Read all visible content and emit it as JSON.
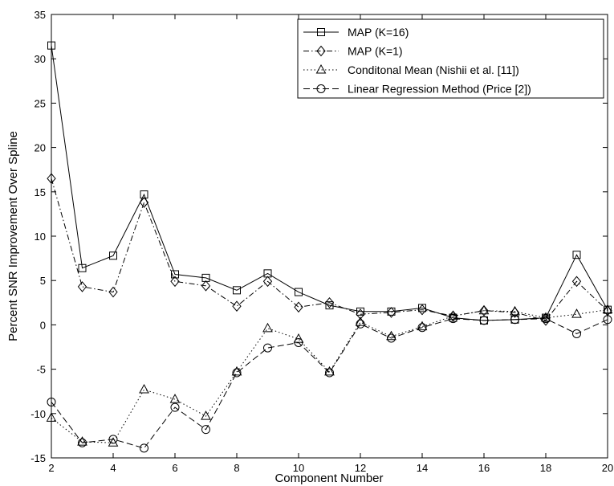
{
  "chart_data": {
    "type": "line",
    "title": "",
    "xlabel": "Component Number",
    "ylabel": "Percent SNR Improvement Over Spline",
    "xlim": [
      2,
      20
    ],
    "ylim": [
      -15,
      35
    ],
    "xticks": [
      2,
      4,
      6,
      8,
      10,
      12,
      14,
      16,
      18,
      20
    ],
    "yticks": [
      -15,
      -10,
      -5,
      0,
      5,
      10,
      15,
      20,
      25,
      30,
      35
    ],
    "grid": false,
    "legend_position": "top-right",
    "x": [
      2,
      3,
      4,
      5,
      6,
      7,
      8,
      9,
      10,
      11,
      12,
      13,
      14,
      15,
      16,
      17,
      18,
      19,
      20
    ],
    "series": [
      {
        "name": "MAP (K=16)",
        "line": "solid",
        "marker": "square",
        "values": [
          31.5,
          6.4,
          7.8,
          14.7,
          5.7,
          5.3,
          3.9,
          5.8,
          3.7,
          2.2,
          1.5,
          1.5,
          1.9,
          0.8,
          0.5,
          0.6,
          0.8,
          7.9,
          1.7
        ]
      },
      {
        "name": "MAP (K=1)",
        "line": "dash-dot",
        "marker": "diamond",
        "values": [
          16.5,
          4.3,
          3.7,
          13.8,
          4.9,
          4.4,
          2.1,
          4.9,
          2.0,
          2.5,
          1.2,
          1.4,
          1.7,
          1.0,
          1.6,
          1.4,
          0.5,
          4.9,
          1.6
        ]
      },
      {
        "name": "Conditonal Mean (Nishii et al. [11])",
        "line": "dotted",
        "marker": "triangle",
        "values": [
          -10.5,
          -13.2,
          -13.3,
          -7.3,
          -8.4,
          -10.3,
          -5.3,
          -0.4,
          -1.6,
          -5.3,
          0.3,
          -1.3,
          -0.2,
          1.0,
          1.6,
          1.5,
          0.8,
          1.2,
          1.7
        ]
      },
      {
        "name": "Linear Regression Method (Price [2])",
        "line": "dashed",
        "marker": "circle",
        "values": [
          -8.7,
          -13.3,
          -12.9,
          -13.9,
          -9.3,
          -11.8,
          -5.4,
          -2.6,
          -2.0,
          -5.4,
          0.1,
          -1.5,
          -0.3,
          0.7,
          0.5,
          0.6,
          0.7,
          -1.0,
          0.6
        ]
      }
    ]
  }
}
